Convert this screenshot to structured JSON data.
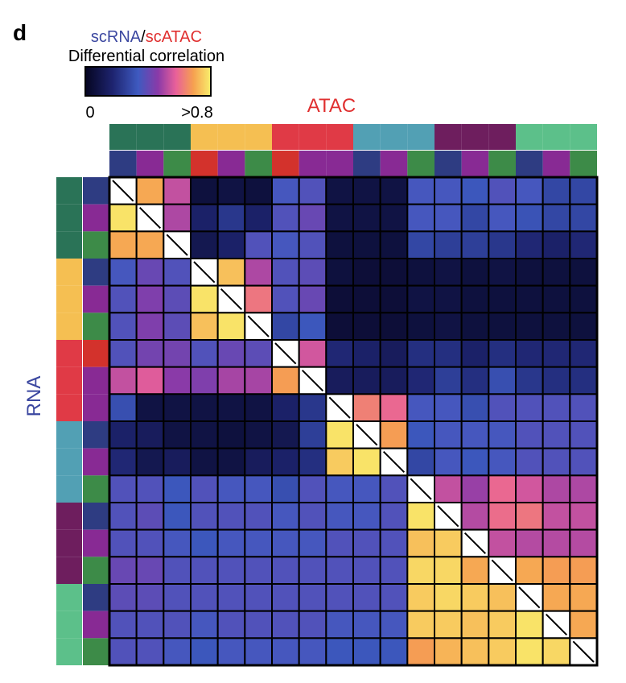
{
  "panel_label": "d",
  "legend": {
    "title_part1": "scRNA",
    "title_sep": "/",
    "title_part2": "scATAC",
    "subtitle": "Differential correlation",
    "min_label": "0",
    "max_label": ">0.8",
    "colorscale": [
      "#050520",
      "#1e2470",
      "#3e5ac0",
      "#8a3aa8",
      "#e8609a",
      "#f6a050",
      "#f9ef6c"
    ]
  },
  "colors": {
    "title_rna": "#3b47a0",
    "title_atac": "#e03030",
    "groups": [
      "#2a7357",
      "#f5bf52",
      "#e03a46",
      "#52a0b4",
      "#6e1e5e",
      "#5cc08a"
    ],
    "subtypes": [
      "#2e3c82",
      "#882a94",
      "#3d8b48"
    ],
    "atac_second_group": [
      "#d3322c",
      "#882a94",
      "#3d8b48"
    ],
    "rna_second_group": [
      "#d3322c",
      "#882a94",
      "#3d8b48"
    ]
  },
  "chart_data": {
    "type": "heatmap",
    "title": "",
    "xlabel": "ATAC",
    "ylabel": "RNA",
    "value_range": [
      0,
      0.8
    ],
    "diagonal": "masked",
    "n_rows": 18,
    "n_cols": 18,
    "values": [
      [
        null,
        0.68,
        0.48,
        0.05,
        0.06,
        0.05,
        0.28,
        0.3,
        0.06,
        0.06,
        0.06,
        0.28,
        0.28,
        0.26,
        0.3,
        0.28,
        0.22,
        0.22
      ],
      [
        0.78,
        null,
        0.45,
        0.12,
        0.18,
        0.12,
        0.3,
        0.34,
        0.06,
        0.06,
        0.06,
        0.28,
        0.28,
        0.22,
        0.28,
        0.25,
        0.22,
        0.22
      ],
      [
        0.68,
        0.68,
        null,
        0.08,
        0.12,
        0.3,
        0.28,
        0.3,
        0.05,
        0.05,
        0.05,
        0.22,
        0.2,
        0.2,
        0.18,
        0.14,
        0.12,
        0.14
      ],
      [
        0.28,
        0.34,
        0.3,
        null,
        0.72,
        0.45,
        0.3,
        0.32,
        0.05,
        0.04,
        0.04,
        0.05,
        0.06,
        0.05,
        0.06,
        0.05,
        0.05,
        0.05
      ],
      [
        0.3,
        0.38,
        0.32,
        0.78,
        null,
        0.58,
        0.3,
        0.34,
        0.04,
        0.04,
        0.04,
        0.06,
        0.06,
        0.05,
        0.05,
        0.05,
        0.05,
        0.05
      ],
      [
        0.3,
        0.38,
        0.32,
        0.72,
        0.78,
        null,
        0.22,
        0.26,
        0.04,
        0.04,
        0.04,
        0.05,
        0.06,
        0.05,
        0.05,
        0.05,
        0.05,
        0.05
      ],
      [
        0.3,
        0.36,
        0.36,
        0.3,
        0.34,
        0.32,
        null,
        0.5,
        0.14,
        0.12,
        0.1,
        0.16,
        0.16,
        0.12,
        0.16,
        0.14,
        0.14,
        0.14
      ],
      [
        0.48,
        0.52,
        0.4,
        0.38,
        0.44,
        0.44,
        0.66,
        null,
        0.1,
        0.1,
        0.1,
        0.14,
        0.2,
        0.16,
        0.24,
        0.18,
        0.16,
        0.16
      ],
      [
        0.24,
        0.06,
        0.06,
        0.06,
        0.06,
        0.06,
        0.12,
        0.18,
        null,
        0.6,
        0.55,
        0.28,
        0.28,
        0.24,
        0.3,
        0.3,
        0.3,
        0.3
      ],
      [
        0.12,
        0.1,
        0.06,
        0.06,
        0.05,
        0.06,
        0.08,
        0.2,
        0.78,
        null,
        0.66,
        0.26,
        0.28,
        0.28,
        0.28,
        0.3,
        0.3,
        0.3
      ],
      [
        0.14,
        0.08,
        0.1,
        0.06,
        0.06,
        0.1,
        0.12,
        0.16,
        0.74,
        0.78,
        null,
        0.22,
        0.28,
        0.26,
        0.28,
        0.3,
        0.3,
        0.3
      ],
      [
        0.3,
        0.3,
        0.26,
        0.3,
        0.28,
        0.28,
        0.24,
        0.3,
        0.28,
        0.28,
        0.3,
        null,
        0.48,
        0.42,
        0.55,
        0.5,
        0.45,
        0.45
      ],
      [
        0.3,
        0.32,
        0.26,
        0.3,
        0.3,
        0.3,
        0.28,
        0.3,
        0.28,
        0.28,
        0.3,
        0.78,
        null,
        0.46,
        0.56,
        0.58,
        0.48,
        0.48
      ],
      [
        0.3,
        0.3,
        0.28,
        0.26,
        0.28,
        0.28,
        0.28,
        0.28,
        0.3,
        0.3,
        0.3,
        0.72,
        0.74,
        null,
        0.48,
        0.46,
        0.46,
        0.46
      ],
      [
        0.34,
        0.34,
        0.3,
        0.3,
        0.3,
        0.3,
        0.3,
        0.3,
        0.3,
        0.3,
        0.3,
        0.76,
        0.76,
        0.68,
        null,
        0.68,
        0.66,
        0.66
      ],
      [
        0.32,
        0.32,
        0.3,
        0.3,
        0.3,
        0.3,
        0.3,
        0.3,
        0.3,
        0.3,
        0.3,
        0.74,
        0.76,
        0.74,
        0.72,
        null,
        0.68,
        0.68
      ],
      [
        0.3,
        0.3,
        0.3,
        0.28,
        0.3,
        0.3,
        0.3,
        0.3,
        0.28,
        0.28,
        0.28,
        0.74,
        0.74,
        0.72,
        0.74,
        0.78,
        null,
        0.68
      ],
      [
        0.3,
        0.3,
        0.28,
        0.26,
        0.28,
        0.28,
        0.28,
        0.28,
        0.26,
        0.26,
        0.26,
        0.66,
        0.7,
        0.72,
        0.74,
        0.78,
        0.76,
        null
      ]
    ]
  }
}
